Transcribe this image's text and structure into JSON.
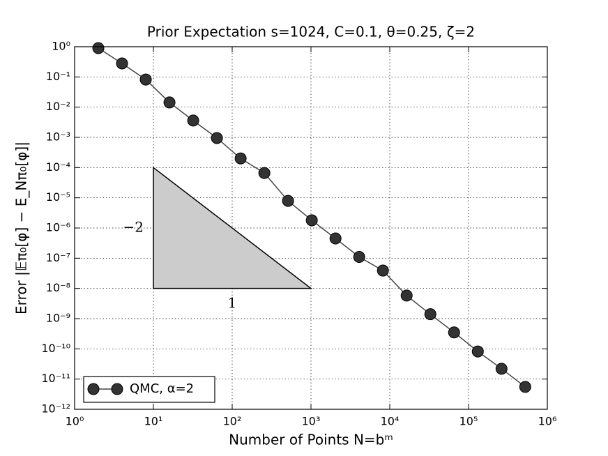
{
  "chart_data": {
    "type": "line",
    "title": "Prior Expectation s=1024, C=0.1, θ=0.25, ζ=2",
    "x_label": "Number of Points N=bᵐ",
    "y_label": "Error |𝔼π₀[φ] − E_Nπ₀[φ]|",
    "x": [
      2,
      4,
      8,
      16,
      32,
      64,
      128,
      256,
      512,
      1024,
      2048,
      4096,
      8192,
      16384,
      32768,
      65536,
      131072,
      262144,
      524288
    ],
    "series": [
      {
        "name": "QMC, α=2",
        "color": "#333333",
        "values": [
          0.9,
          0.28,
          0.082,
          0.0143,
          0.0036,
          0.00095,
          0.0002,
          6.6e-05,
          7.9e-06,
          1.8e-06,
          4.5e-07,
          1.1e-07,
          3.9e-08,
          5.8e-09,
          1.4e-09,
          3.5e-10,
          8.2e-11,
          2.2e-11,
          5.5e-12
        ]
      }
    ],
    "x_log": true,
    "y_log": true,
    "xlim": [
      1,
      1000000
    ],
    "ylim": [
      1e-12,
      1
    ],
    "xticks": [
      {
        "value": 1,
        "label": "10⁰"
      },
      {
        "value": 10,
        "label": "10¹"
      },
      {
        "value": 100,
        "label": "10²"
      },
      {
        "value": 1000,
        "label": "10³"
      },
      {
        "value": 10000,
        "label": "10⁴"
      },
      {
        "value": 100000,
        "label": "10⁵"
      },
      {
        "value": 1000000,
        "label": "10⁶"
      }
    ],
    "yticks": [
      {
        "value": 1e-12,
        "label": "10⁻¹²"
      },
      {
        "value": 1e-11,
        "label": "10⁻¹¹"
      },
      {
        "value": 1e-10,
        "label": "10⁻¹⁰"
      },
      {
        "value": 1e-09,
        "label": "10⁻⁹"
      },
      {
        "value": 1e-08,
        "label": "10⁻⁸"
      },
      {
        "value": 1e-07,
        "label": "10⁻⁷"
      },
      {
        "value": 1e-06,
        "label": "10⁻⁶"
      },
      {
        "value": 1e-05,
        "label": "10⁻⁵"
      },
      {
        "value": 0.0001,
        "label": "10⁻⁴"
      },
      {
        "value": 0.001,
        "label": "10⁻³"
      },
      {
        "value": 0.01,
        "label": "10⁻²"
      },
      {
        "value": 0.1,
        "label": "10⁻¹"
      },
      {
        "value": 1,
        "label": "10⁰"
      }
    ],
    "grid": true,
    "legend_position": "lower left",
    "slope_triangle": {
      "x": [
        10,
        10,
        1000
      ],
      "y": [
        0.0001,
        1e-08,
        1e-08
      ],
      "vertical_label": "−2",
      "horizontal_label": "1",
      "color": "#cccccc"
    }
  }
}
